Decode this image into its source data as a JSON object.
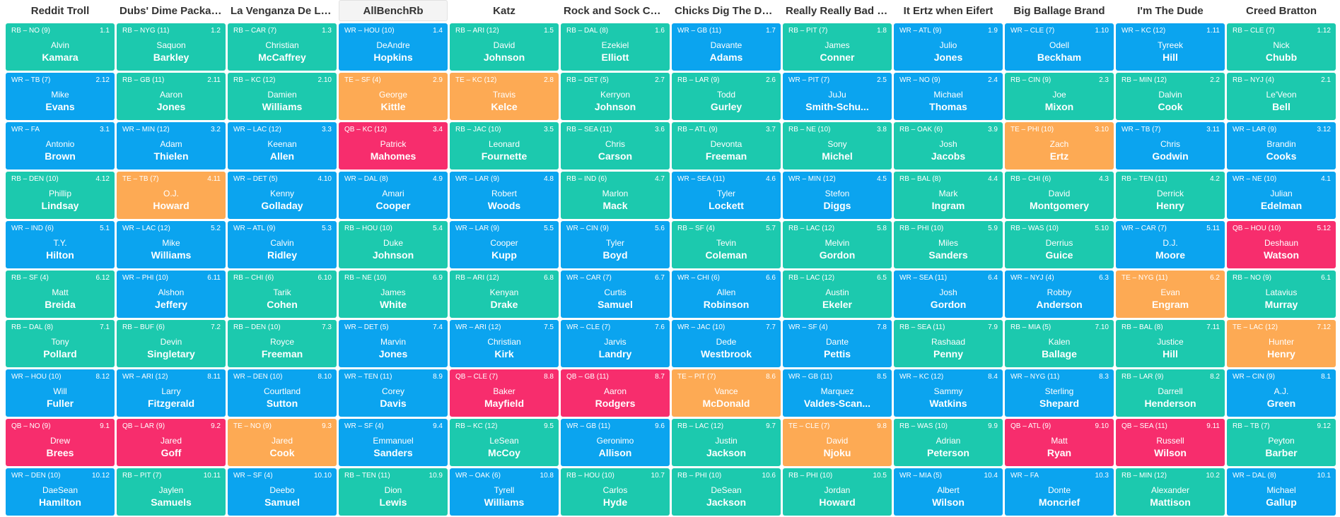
{
  "colors": {
    "RB": "#1cc9ae",
    "WR": "#0ba4ef",
    "TE": "#fdaa54",
    "QB": "#f72d6d"
  },
  "teams": [
    "Reddit Troll",
    "Dubs' Dime Package",
    "La Venganza De Los C...",
    "AllBenchRb",
    "Katz",
    "Rock and Sock Conne...",
    "Chicks Dig The Deep ...",
    "Really Really Bad JuJu",
    "It Ertz when Eifert",
    "Big Ballage Brand",
    "I'm The Dude",
    "Creed Bratton"
  ],
  "rounds": [
    [
      {
        "pos": "RB",
        "meta": "RB – NO (9)",
        "pick": "1.1",
        "first": "Alvin",
        "last": "Kamara"
      },
      {
        "pos": "RB",
        "meta": "RB – NYG (11)",
        "pick": "1.2",
        "first": "Saquon",
        "last": "Barkley"
      },
      {
        "pos": "RB",
        "meta": "RB – CAR (7)",
        "pick": "1.3",
        "first": "Christian",
        "last": "McCaffrey"
      },
      {
        "pos": "WR",
        "meta": "WR – HOU (10)",
        "pick": "1.4",
        "first": "DeAndre",
        "last": "Hopkins"
      },
      {
        "pos": "RB",
        "meta": "RB – ARI (12)",
        "pick": "1.5",
        "first": "David",
        "last": "Johnson"
      },
      {
        "pos": "RB",
        "meta": "RB – DAL (8)",
        "pick": "1.6",
        "first": "Ezekiel",
        "last": "Elliott"
      },
      {
        "pos": "WR",
        "meta": "WR – GB (11)",
        "pick": "1.7",
        "first": "Davante",
        "last": "Adams"
      },
      {
        "pos": "RB",
        "meta": "RB – PIT (7)",
        "pick": "1.8",
        "first": "James",
        "last": "Conner"
      },
      {
        "pos": "WR",
        "meta": "WR – ATL (9)",
        "pick": "1.9",
        "first": "Julio",
        "last": "Jones"
      },
      {
        "pos": "WR",
        "meta": "WR – CLE (7)",
        "pick": "1.10",
        "first": "Odell",
        "last": "Beckham"
      },
      {
        "pos": "WR",
        "meta": "WR – KC (12)",
        "pick": "1.11",
        "first": "Tyreek",
        "last": "Hill"
      },
      {
        "pos": "RB",
        "meta": "RB – CLE (7)",
        "pick": "1.12",
        "first": "Nick",
        "last": "Chubb"
      }
    ],
    [
      {
        "pos": "WR",
        "meta": "WR – TB (7)",
        "pick": "2.12",
        "first": "Mike",
        "last": "Evans"
      },
      {
        "pos": "RB",
        "meta": "RB – GB (11)",
        "pick": "2.11",
        "first": "Aaron",
        "last": "Jones"
      },
      {
        "pos": "RB",
        "meta": "RB – KC (12)",
        "pick": "2.10",
        "first": "Damien",
        "last": "Williams"
      },
      {
        "pos": "TE",
        "meta": "TE – SF (4)",
        "pick": "2.9",
        "first": "George",
        "last": "Kittle"
      },
      {
        "pos": "TE",
        "meta": "TE – KC (12)",
        "pick": "2.8",
        "first": "Travis",
        "last": "Kelce"
      },
      {
        "pos": "RB",
        "meta": "RB – DET (5)",
        "pick": "2.7",
        "first": "Kerryon",
        "last": "Johnson"
      },
      {
        "pos": "RB",
        "meta": "RB – LAR (9)",
        "pick": "2.6",
        "first": "Todd",
        "last": "Gurley"
      },
      {
        "pos": "WR",
        "meta": "WR – PIT (7)",
        "pick": "2.5",
        "first": "JuJu",
        "last": "Smith-Schu..."
      },
      {
        "pos": "WR",
        "meta": "WR – NO (9)",
        "pick": "2.4",
        "first": "Michael",
        "last": "Thomas"
      },
      {
        "pos": "RB",
        "meta": "RB – CIN (9)",
        "pick": "2.3",
        "first": "Joe",
        "last": "Mixon"
      },
      {
        "pos": "RB",
        "meta": "RB – MIN (12)",
        "pick": "2.2",
        "first": "Dalvin",
        "last": "Cook"
      },
      {
        "pos": "RB",
        "meta": "RB – NYJ (4)",
        "pick": "2.1",
        "first": "Le'Veon",
        "last": "Bell"
      }
    ],
    [
      {
        "pos": "WR",
        "meta": "WR – FA",
        "pick": "3.1",
        "first": "Antonio",
        "last": "Brown"
      },
      {
        "pos": "WR",
        "meta": "WR – MIN (12)",
        "pick": "3.2",
        "first": "Adam",
        "last": "Thielen"
      },
      {
        "pos": "WR",
        "meta": "WR – LAC (12)",
        "pick": "3.3",
        "first": "Keenan",
        "last": "Allen"
      },
      {
        "pos": "QB",
        "meta": "QB – KC (12)",
        "pick": "3.4",
        "first": "Patrick",
        "last": "Mahomes"
      },
      {
        "pos": "RB",
        "meta": "RB – JAC (10)",
        "pick": "3.5",
        "first": "Leonard",
        "last": "Fournette"
      },
      {
        "pos": "RB",
        "meta": "RB – SEA (11)",
        "pick": "3.6",
        "first": "Chris",
        "last": "Carson"
      },
      {
        "pos": "RB",
        "meta": "RB – ATL (9)",
        "pick": "3.7",
        "first": "Devonta",
        "last": "Freeman"
      },
      {
        "pos": "RB",
        "meta": "RB – NE (10)",
        "pick": "3.8",
        "first": "Sony",
        "last": "Michel"
      },
      {
        "pos": "RB",
        "meta": "RB – OAK (6)",
        "pick": "3.9",
        "first": "Josh",
        "last": "Jacobs"
      },
      {
        "pos": "TE",
        "meta": "TE – PHI (10)",
        "pick": "3.10",
        "first": "Zach",
        "last": "Ertz"
      },
      {
        "pos": "WR",
        "meta": "WR – TB (7)",
        "pick": "3.11",
        "first": "Chris",
        "last": "Godwin"
      },
      {
        "pos": "WR",
        "meta": "WR – LAR (9)",
        "pick": "3.12",
        "first": "Brandin",
        "last": "Cooks"
      }
    ],
    [
      {
        "pos": "RB",
        "meta": "RB – DEN (10)",
        "pick": "4.12",
        "first": "Phillip",
        "last": "Lindsay"
      },
      {
        "pos": "TE",
        "meta": "TE – TB (7)",
        "pick": "4.11",
        "first": "O.J.",
        "last": "Howard"
      },
      {
        "pos": "WR",
        "meta": "WR – DET (5)",
        "pick": "4.10",
        "first": "Kenny",
        "last": "Golladay"
      },
      {
        "pos": "WR",
        "meta": "WR – DAL (8)",
        "pick": "4.9",
        "first": "Amari",
        "last": "Cooper"
      },
      {
        "pos": "WR",
        "meta": "WR – LAR (9)",
        "pick": "4.8",
        "first": "Robert",
        "last": "Woods"
      },
      {
        "pos": "RB",
        "meta": "RB – IND (6)",
        "pick": "4.7",
        "first": "Marlon",
        "last": "Mack"
      },
      {
        "pos": "WR",
        "meta": "WR – SEA (11)",
        "pick": "4.6",
        "first": "Tyler",
        "last": "Lockett"
      },
      {
        "pos": "WR",
        "meta": "WR – MIN (12)",
        "pick": "4.5",
        "first": "Stefon",
        "last": "Diggs"
      },
      {
        "pos": "RB",
        "meta": "RB – BAL (8)",
        "pick": "4.4",
        "first": "Mark",
        "last": "Ingram"
      },
      {
        "pos": "RB",
        "meta": "RB – CHI (6)",
        "pick": "4.3",
        "first": "David",
        "last": "Montgomery"
      },
      {
        "pos": "RB",
        "meta": "RB – TEN (11)",
        "pick": "4.2",
        "first": "Derrick",
        "last": "Henry"
      },
      {
        "pos": "WR",
        "meta": "WR – NE (10)",
        "pick": "4.1",
        "first": "Julian",
        "last": "Edelman"
      }
    ],
    [
      {
        "pos": "WR",
        "meta": "WR – IND (6)",
        "pick": "5.1",
        "first": "T.Y.",
        "last": "Hilton"
      },
      {
        "pos": "WR",
        "meta": "WR – LAC (12)",
        "pick": "5.2",
        "first": "Mike",
        "last": "Williams"
      },
      {
        "pos": "WR",
        "meta": "WR – ATL (9)",
        "pick": "5.3",
        "first": "Calvin",
        "last": "Ridley"
      },
      {
        "pos": "RB",
        "meta": "RB – HOU (10)",
        "pick": "5.4",
        "first": "Duke",
        "last": "Johnson"
      },
      {
        "pos": "WR",
        "meta": "WR – LAR (9)",
        "pick": "5.5",
        "first": "Cooper",
        "last": "Kupp"
      },
      {
        "pos": "WR",
        "meta": "WR – CIN (9)",
        "pick": "5.6",
        "first": "Tyler",
        "last": "Boyd"
      },
      {
        "pos": "RB",
        "meta": "RB – SF (4)",
        "pick": "5.7",
        "first": "Tevin",
        "last": "Coleman"
      },
      {
        "pos": "RB",
        "meta": "RB – LAC (12)",
        "pick": "5.8",
        "first": "Melvin",
        "last": "Gordon"
      },
      {
        "pos": "RB",
        "meta": "RB – PHI (10)",
        "pick": "5.9",
        "first": "Miles",
        "last": "Sanders"
      },
      {
        "pos": "RB",
        "meta": "RB – WAS (10)",
        "pick": "5.10",
        "first": "Derrius",
        "last": "Guice"
      },
      {
        "pos": "WR",
        "meta": "WR – CAR (7)",
        "pick": "5.11",
        "first": "D.J.",
        "last": "Moore"
      },
      {
        "pos": "QB",
        "meta": "QB – HOU (10)",
        "pick": "5.12",
        "first": "Deshaun",
        "last": "Watson"
      }
    ],
    [
      {
        "pos": "RB",
        "meta": "RB – SF (4)",
        "pick": "6.12",
        "first": "Matt",
        "last": "Breida"
      },
      {
        "pos": "WR",
        "meta": "WR – PHI (10)",
        "pick": "6.11",
        "first": "Alshon",
        "last": "Jeffery"
      },
      {
        "pos": "RB",
        "meta": "RB – CHI (6)",
        "pick": "6.10",
        "first": "Tarik",
        "last": "Cohen"
      },
      {
        "pos": "RB",
        "meta": "RB – NE (10)",
        "pick": "6.9",
        "first": "James",
        "last": "White"
      },
      {
        "pos": "RB",
        "meta": "RB – ARI (12)",
        "pick": "6.8",
        "first": "Kenyan",
        "last": "Drake"
      },
      {
        "pos": "WR",
        "meta": "WR – CAR (7)",
        "pick": "6.7",
        "first": "Curtis",
        "last": "Samuel"
      },
      {
        "pos": "WR",
        "meta": "WR – CHI (6)",
        "pick": "6.6",
        "first": "Allen",
        "last": "Robinson"
      },
      {
        "pos": "RB",
        "meta": "RB – LAC (12)",
        "pick": "6.5",
        "first": "Austin",
        "last": "Ekeler"
      },
      {
        "pos": "WR",
        "meta": "WR – SEA (11)",
        "pick": "6.4",
        "first": "Josh",
        "last": "Gordon"
      },
      {
        "pos": "WR",
        "meta": "WR – NYJ (4)",
        "pick": "6.3",
        "first": "Robby",
        "last": "Anderson"
      },
      {
        "pos": "TE",
        "meta": "TE – NYG (11)",
        "pick": "6.2",
        "first": "Evan",
        "last": "Engram"
      },
      {
        "pos": "RB",
        "meta": "RB – NO (9)",
        "pick": "6.1",
        "first": "Latavius",
        "last": "Murray"
      }
    ],
    [
      {
        "pos": "RB",
        "meta": "RB – DAL (8)",
        "pick": "7.1",
        "first": "Tony",
        "last": "Pollard"
      },
      {
        "pos": "RB",
        "meta": "RB – BUF (6)",
        "pick": "7.2",
        "first": "Devin",
        "last": "Singletary"
      },
      {
        "pos": "RB",
        "meta": "RB – DEN (10)",
        "pick": "7.3",
        "first": "Royce",
        "last": "Freeman"
      },
      {
        "pos": "WR",
        "meta": "WR – DET (5)",
        "pick": "7.4",
        "first": "Marvin",
        "last": "Jones"
      },
      {
        "pos": "WR",
        "meta": "WR – ARI (12)",
        "pick": "7.5",
        "first": "Christian",
        "last": "Kirk"
      },
      {
        "pos": "WR",
        "meta": "WR – CLE (7)",
        "pick": "7.6",
        "first": "Jarvis",
        "last": "Landry"
      },
      {
        "pos": "WR",
        "meta": "WR – JAC (10)",
        "pick": "7.7",
        "first": "Dede",
        "last": "Westbrook"
      },
      {
        "pos": "WR",
        "meta": "WR – SF (4)",
        "pick": "7.8",
        "first": "Dante",
        "last": "Pettis"
      },
      {
        "pos": "RB",
        "meta": "RB – SEA (11)",
        "pick": "7.9",
        "first": "Rashaad",
        "last": "Penny"
      },
      {
        "pos": "RB",
        "meta": "RB – MIA (5)",
        "pick": "7.10",
        "first": "Kalen",
        "last": "Ballage"
      },
      {
        "pos": "RB",
        "meta": "RB – BAL (8)",
        "pick": "7.11",
        "first": "Justice",
        "last": "Hill"
      },
      {
        "pos": "TE",
        "meta": "TE – LAC (12)",
        "pick": "7.12",
        "first": "Hunter",
        "last": "Henry"
      }
    ],
    [
      {
        "pos": "WR",
        "meta": "WR – HOU (10)",
        "pick": "8.12",
        "first": "Will",
        "last": "Fuller"
      },
      {
        "pos": "WR",
        "meta": "WR – ARI (12)",
        "pick": "8.11",
        "first": "Larry",
        "last": "Fitzgerald"
      },
      {
        "pos": "WR",
        "meta": "WR – DEN (10)",
        "pick": "8.10",
        "first": "Courtland",
        "last": "Sutton"
      },
      {
        "pos": "WR",
        "meta": "WR – TEN (11)",
        "pick": "8.9",
        "first": "Corey",
        "last": "Davis"
      },
      {
        "pos": "QB",
        "meta": "QB – CLE (7)",
        "pick": "8.8",
        "first": "Baker",
        "last": "Mayfield"
      },
      {
        "pos": "QB",
        "meta": "QB – GB (11)",
        "pick": "8.7",
        "first": "Aaron",
        "last": "Rodgers"
      },
      {
        "pos": "TE",
        "meta": "TE – PIT (7)",
        "pick": "8.6",
        "first": "Vance",
        "last": "McDonald"
      },
      {
        "pos": "WR",
        "meta": "WR – GB (11)",
        "pick": "8.5",
        "first": "Marquez",
        "last": "Valdes-Scan..."
      },
      {
        "pos": "WR",
        "meta": "WR – KC (12)",
        "pick": "8.4",
        "first": "Sammy",
        "last": "Watkins"
      },
      {
        "pos": "WR",
        "meta": "WR – NYG (11)",
        "pick": "8.3",
        "first": "Sterling",
        "last": "Shepard"
      },
      {
        "pos": "RB",
        "meta": "RB – LAR (9)",
        "pick": "8.2",
        "first": "Darrell",
        "last": "Henderson"
      },
      {
        "pos": "WR",
        "meta": "WR – CIN (9)",
        "pick": "8.1",
        "first": "A.J.",
        "last": "Green"
      }
    ],
    [
      {
        "pos": "QB",
        "meta": "QB – NO (9)",
        "pick": "9.1",
        "first": "Drew",
        "last": "Brees"
      },
      {
        "pos": "QB",
        "meta": "QB – LAR (9)",
        "pick": "9.2",
        "first": "Jared",
        "last": "Goff"
      },
      {
        "pos": "TE",
        "meta": "TE – NO (9)",
        "pick": "9.3",
        "first": "Jared",
        "last": "Cook"
      },
      {
        "pos": "WR",
        "meta": "WR – SF (4)",
        "pick": "9.4",
        "first": "Emmanuel",
        "last": "Sanders"
      },
      {
        "pos": "RB",
        "meta": "RB – KC (12)",
        "pick": "9.5",
        "first": "LeSean",
        "last": "McCoy"
      },
      {
        "pos": "WR",
        "meta": "WR – GB (11)",
        "pick": "9.6",
        "first": "Geronimo",
        "last": "Allison"
      },
      {
        "pos": "RB",
        "meta": "RB – LAC (12)",
        "pick": "9.7",
        "first": "Justin",
        "last": "Jackson"
      },
      {
        "pos": "TE",
        "meta": "TE – CLE (7)",
        "pick": "9.8",
        "first": "David",
        "last": "Njoku"
      },
      {
        "pos": "RB",
        "meta": "RB – WAS (10)",
        "pick": "9.9",
        "first": "Adrian",
        "last": "Peterson"
      },
      {
        "pos": "QB",
        "meta": "QB – ATL (9)",
        "pick": "9.10",
        "first": "Matt",
        "last": "Ryan"
      },
      {
        "pos": "QB",
        "meta": "QB – SEA (11)",
        "pick": "9.11",
        "first": "Russell",
        "last": "Wilson"
      },
      {
        "pos": "RB",
        "meta": "RB – TB (7)",
        "pick": "9.12",
        "first": "Peyton",
        "last": "Barber"
      }
    ],
    [
      {
        "pos": "WR",
        "meta": "WR – DEN (10)",
        "pick": "10.12",
        "first": "DaeSean",
        "last": "Hamilton"
      },
      {
        "pos": "RB",
        "meta": "RB – PIT (7)",
        "pick": "10.11",
        "first": "Jaylen",
        "last": "Samuels"
      },
      {
        "pos": "WR",
        "meta": "WR – SF (4)",
        "pick": "10.10",
        "first": "Deebo",
        "last": "Samuel"
      },
      {
        "pos": "RB",
        "meta": "RB – TEN (11)",
        "pick": "10.9",
        "first": "Dion",
        "last": "Lewis"
      },
      {
        "pos": "WR",
        "meta": "WR – OAK (6)",
        "pick": "10.8",
        "first": "Tyrell",
        "last": "Williams"
      },
      {
        "pos": "RB",
        "meta": "RB – HOU (10)",
        "pick": "10.7",
        "first": "Carlos",
        "last": "Hyde"
      },
      {
        "pos": "RB",
        "meta": "RB – PHI (10)",
        "pick": "10.6",
        "first": "DeSean",
        "last": "Jackson"
      },
      {
        "pos": "RB",
        "meta": "RB – PHI (10)",
        "pick": "10.5",
        "first": "Jordan",
        "last": "Howard"
      },
      {
        "pos": "WR",
        "meta": "WR – MIA (5)",
        "pick": "10.4",
        "first": "Albert",
        "last": "Wilson"
      },
      {
        "pos": "WR",
        "meta": "WR – FA",
        "pick": "10.3",
        "first": "Donte",
        "last": "Moncrief"
      },
      {
        "pos": "RB",
        "meta": "RB – MIN (12)",
        "pick": "10.2",
        "first": "Alexander",
        "last": "Mattison"
      },
      {
        "pos": "WR",
        "meta": "WR – DAL (8)",
        "pick": "10.1",
        "first": "Michael",
        "last": "Gallup"
      }
    ]
  ]
}
